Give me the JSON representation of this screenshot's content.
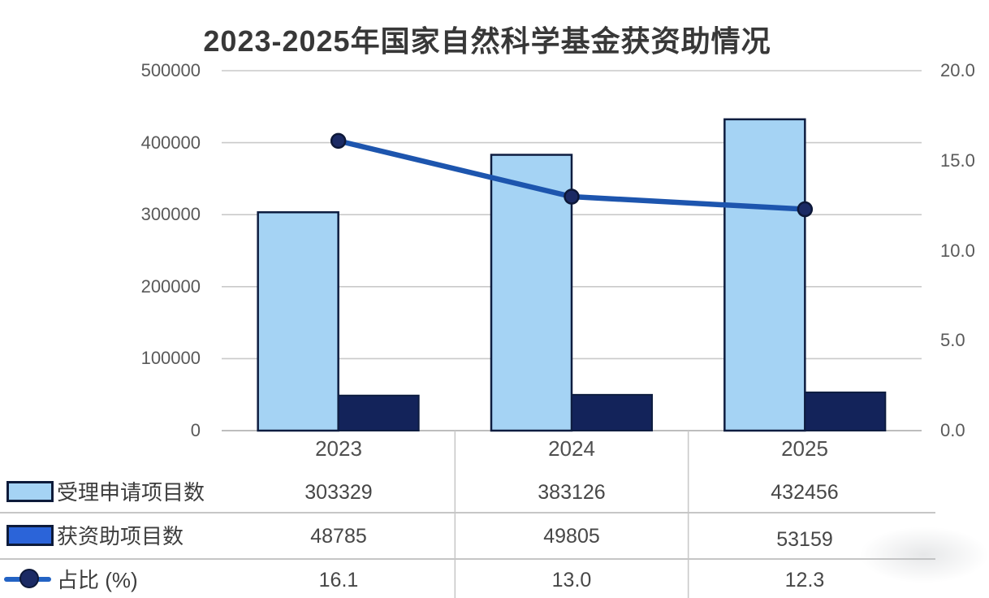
{
  "title": "2023-2025年国家自然科学基金获资助情况",
  "colors": {
    "bar_applications": "#a5d3f4",
    "bar_border": "#0e1d40",
    "bar_funded": "#13235a",
    "line": "#1d55ae",
    "marker": "#1b2a64",
    "marker_border": "#0d1838",
    "grid": "#c9c9c9",
    "axis_line": "#bdbdbd",
    "legend_funded_swatch": "#2b64d9",
    "legend_line_sample": "#2363c4"
  },
  "chart_data": {
    "type": "bar+line combo",
    "title": "2023-2025年国家自然科学基金获资助情况",
    "categories": [
      "2023",
      "2024",
      "2025"
    ],
    "series": [
      {
        "name": "受理申请项目数",
        "type": "bar",
        "axis": "left",
        "values": [
          303329,
          383126,
          432456
        ]
      },
      {
        "name": "获资助项目数",
        "type": "bar",
        "axis": "left",
        "values": [
          48785,
          49805,
          53159
        ]
      },
      {
        "name": "占比 (%)",
        "type": "line",
        "axis": "right",
        "values": [
          16.1,
          13.0,
          12.3
        ]
      }
    ],
    "left_axis": {
      "min": 0,
      "max": 500000,
      "tick_step": 100000,
      "ticks": [
        "500000",
        "400000",
        "300000",
        "200000",
        "100000",
        "0"
      ]
    },
    "right_axis": {
      "min": 0.0,
      "max": 20.0,
      "tick_step": 5.0,
      "ticks": [
        "20.0",
        "15.0",
        "10.0",
        "5.0",
        "0.0"
      ]
    },
    "grid": true,
    "legend_position": "bottom-table"
  },
  "table": {
    "rows": [
      {
        "label": "受理申请项目数",
        "swatch": "light-blue-bar-swatch",
        "values": [
          "303329",
          "383126",
          "432456"
        ]
      },
      {
        "label": "获资助项目数",
        "swatch": "royal-blue-bar-swatch",
        "values": [
          "48785",
          "49805",
          "53159"
        ]
      },
      {
        "label": "占比 (%)",
        "swatch": "line-marker-sample",
        "values": [
          "16.1",
          "13.0",
          "12.3"
        ]
      }
    ]
  }
}
